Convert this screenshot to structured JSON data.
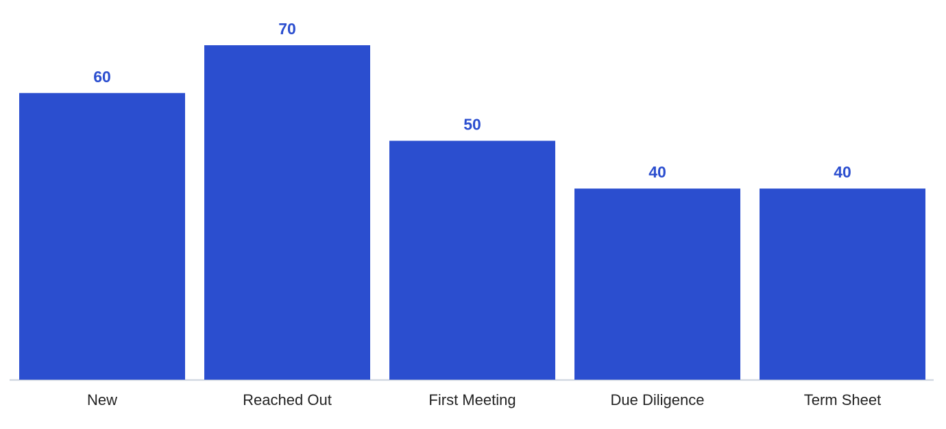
{
  "chart_data": {
    "type": "bar",
    "categories": [
      "New",
      "Reached Out",
      "First Meeting",
      "Due Diligence",
      "Term Sheet"
    ],
    "values": [
      60,
      70,
      50,
      40,
      40
    ],
    "color": "#2b4ecf"
  }
}
